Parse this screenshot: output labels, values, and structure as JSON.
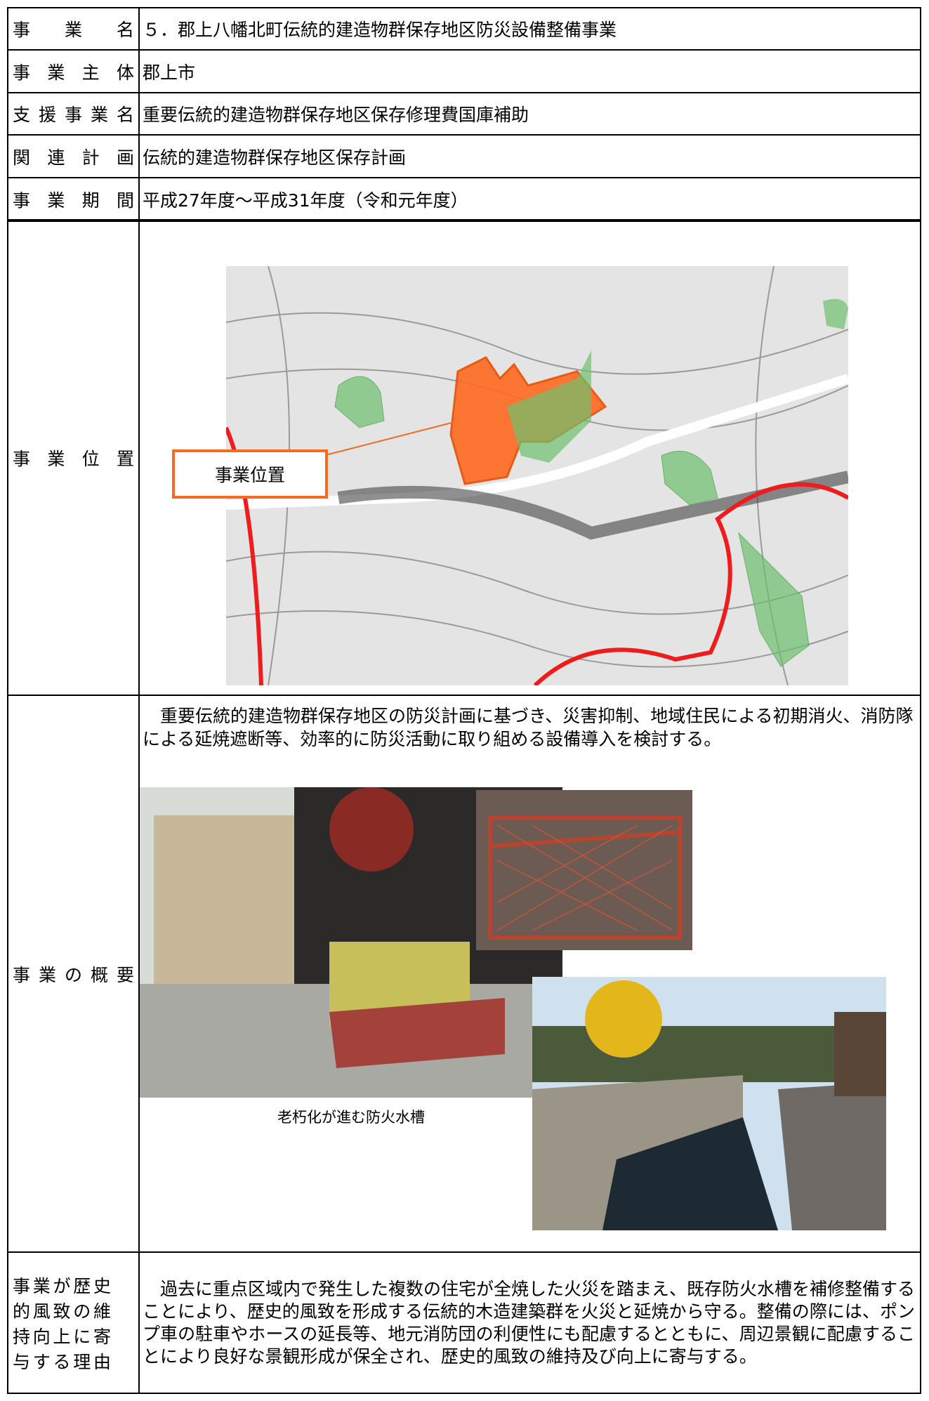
{
  "table": {
    "rows": [
      {
        "label": "事業名",
        "value": "５．郡上八幡北町伝統的建造物群保存地区防災設備整備事業"
      },
      {
        "label": "事業主体",
        "value": "郡上市"
      },
      {
        "label": "支援事業名",
        "value": "重要伝統的建造物群保存地区保存修理費国庫補助"
      },
      {
        "label": "関連計画",
        "value": "伝統的建造物群保存地区保存計画"
      },
      {
        "label": "事業期間",
        "value": "平成27年度～平成31年度（令和元年度）"
      }
    ],
    "location": {
      "label": "事業位置",
      "map_label": "事業位置"
    },
    "overview": {
      "label": "事業の概要",
      "description": "重要伝統的建造物群保存地区の防災計画に基づき、災害抑制、地域住民による初期消火、消防隊による延焼遮断等、効率的に防災活動に取り組める設備導入を検討する。",
      "photo_caption": "老朽化が進む防火水槽"
    },
    "reason": {
      "label": "事業が歴史的風致の維持向上に寄与する理由",
      "text": "過去に重点区域内で発生した複数の住宅が全焼した火災を踏まえ、既存防火水槽を補修整備することにより、歴史的風致を形成する伝統的木造建築群を火災と延焼から守る。整備の際には、ポンプ車の駐車やホースの延長等、地元消防団の利便性にも配慮するとともに、周辺景観に配慮することにより良好な景観形成が保全され、歴史的風致の維持及び向上に寄与する。"
    }
  }
}
